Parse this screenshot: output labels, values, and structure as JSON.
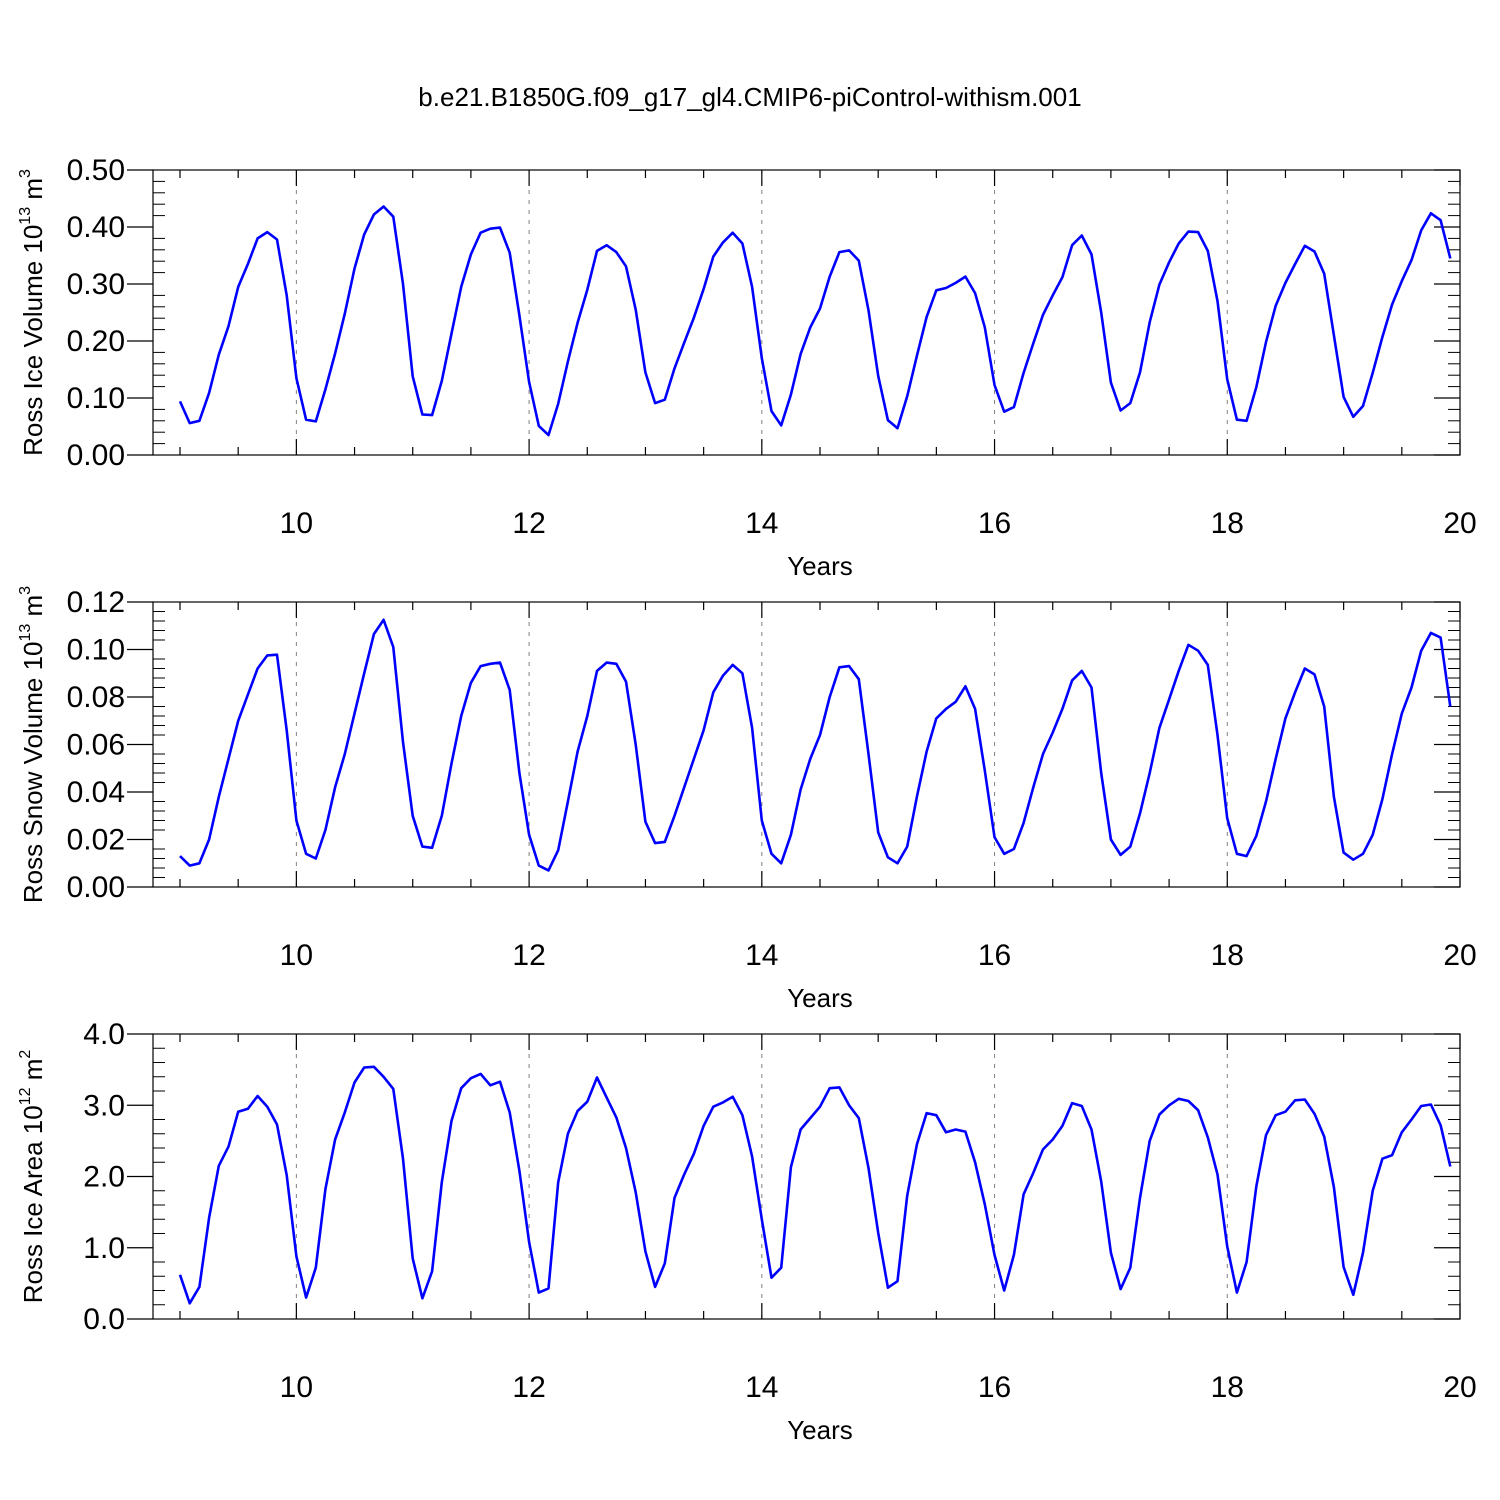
{
  "title": "b.e21.B1850G.f09_g17_gl4.CMIP6-piControl-withism.001",
  "colors": {
    "line": "#0000ff",
    "axes": "#000000",
    "grid": "#808080"
  },
  "chart_data": [
    {
      "type": "line",
      "xlabel": "Years",
      "ylabel": {
        "prefix": "Ross Ice Volume 10",
        "exp": "13",
        "unit": " m",
        "unit_exp": "3"
      },
      "xlim": [
        9,
        20
      ],
      "ylim": [
        0,
        0.5
      ],
      "yticks": [
        "0.00",
        "0.10",
        "0.20",
        "0.30",
        "0.40",
        "0.50"
      ],
      "xticks": [
        "10",
        "12",
        "14",
        "16",
        "18",
        "20"
      ],
      "grid": "dashed vertical at major x ticks",
      "x_start": 9.0,
      "x_step": 0.08333,
      "values": [
        0.094,
        0.056,
        0.06,
        0.109,
        0.176,
        0.226,
        0.295,
        0.335,
        0.38,
        0.391,
        0.378,
        0.28,
        0.135,
        0.062,
        0.059,
        0.115,
        0.178,
        0.248,
        0.327,
        0.387,
        0.422,
        0.436,
        0.418,
        0.3,
        0.138,
        0.071,
        0.07,
        0.13,
        0.213,
        0.295,
        0.352,
        0.39,
        0.397,
        0.399,
        0.355,
        0.245,
        0.128,
        0.051,
        0.035,
        0.09,
        0.164,
        0.232,
        0.29,
        0.358,
        0.368,
        0.356,
        0.331,
        0.255,
        0.145,
        0.091,
        0.097,
        0.152,
        0.197,
        0.241,
        0.291,
        0.348,
        0.373,
        0.39,
        0.371,
        0.295,
        0.17,
        0.077,
        0.052,
        0.106,
        0.177,
        0.224,
        0.257,
        0.313,
        0.356,
        0.359,
        0.341,
        0.254,
        0.139,
        0.061,
        0.047,
        0.103,
        0.174,
        0.242,
        0.289,
        0.293,
        0.302,
        0.313,
        0.284,
        0.224,
        0.123,
        0.076,
        0.084,
        0.144,
        0.196,
        0.246,
        0.28,
        0.312,
        0.368,
        0.385,
        0.352,
        0.25,
        0.127,
        0.078,
        0.091,
        0.145,
        0.233,
        0.299,
        0.338,
        0.371,
        0.392,
        0.391,
        0.358,
        0.27,
        0.133,
        0.062,
        0.06,
        0.119,
        0.198,
        0.262,
        0.302,
        0.335,
        0.367,
        0.357,
        0.318,
        0.21,
        0.102,
        0.067,
        0.086,
        0.144,
        0.207,
        0.264,
        0.305,
        0.342,
        0.394,
        0.424,
        0.412,
        0.345
      ]
    },
    {
      "type": "line",
      "xlabel": "Years",
      "ylabel": {
        "prefix": "Ross Snow Volume 10",
        "exp": "13",
        "unit": " m",
        "unit_exp": "3"
      },
      "xlim": [
        9,
        20
      ],
      "ylim": [
        0,
        0.12
      ],
      "yticks": [
        "0.00",
        "0.02",
        "0.04",
        "0.06",
        "0.08",
        "0.10",
        "0.12"
      ],
      "xticks": [
        "10",
        "12",
        "14",
        "16",
        "18",
        "20"
      ],
      "grid": "dashed vertical at major x ticks",
      "x_start": 9.0,
      "x_step": 0.08333,
      "values": [
        0.013,
        0.009,
        0.01,
        0.02,
        0.038,
        0.054,
        0.07,
        0.081,
        0.092,
        0.0975,
        0.0978,
        0.066,
        0.028,
        0.014,
        0.012,
        0.024,
        0.042,
        0.056,
        0.073,
        0.09,
        0.1065,
        0.1125,
        0.101,
        0.061,
        0.03,
        0.017,
        0.0165,
        0.03,
        0.052,
        0.072,
        0.086,
        0.093,
        0.094,
        0.0945,
        0.083,
        0.048,
        0.022,
        0.009,
        0.007,
        0.0155,
        0.036,
        0.057,
        0.072,
        0.091,
        0.0945,
        0.094,
        0.0865,
        0.06,
        0.0275,
        0.0185,
        0.019,
        0.03,
        0.042,
        0.054,
        0.066,
        0.082,
        0.089,
        0.0935,
        0.09,
        0.067,
        0.028,
        0.014,
        0.01,
        0.022,
        0.041,
        0.054,
        0.064,
        0.08,
        0.0925,
        0.093,
        0.0875,
        0.056,
        0.023,
        0.0125,
        0.01,
        0.017,
        0.038,
        0.057,
        0.071,
        0.075,
        0.078,
        0.0845,
        0.075,
        0.049,
        0.021,
        0.014,
        0.016,
        0.027,
        0.042,
        0.056,
        0.065,
        0.075,
        0.087,
        0.091,
        0.084,
        0.048,
        0.02,
        0.0135,
        0.017,
        0.031,
        0.048,
        0.067,
        0.079,
        0.091,
        0.102,
        0.0995,
        0.0935,
        0.064,
        0.029,
        0.014,
        0.013,
        0.0215,
        0.036,
        0.054,
        0.071,
        0.082,
        0.092,
        0.0895,
        0.076,
        0.038,
        0.0145,
        0.0115,
        0.014,
        0.022,
        0.037,
        0.056,
        0.073,
        0.084,
        0.0995,
        0.107,
        0.105,
        0.076
      ]
    },
    {
      "type": "line",
      "xlabel": "Years",
      "ylabel": {
        "prefix": "Ross Ice Area 10",
        "exp": "12",
        "unit": " m",
        "unit_exp": "2"
      },
      "xlim": [
        9,
        20
      ],
      "ylim": [
        0,
        4
      ],
      "yticks": [
        "0.0",
        "1.0",
        "2.0",
        "3.0",
        "4.0"
      ],
      "xticks": [
        "10",
        "12",
        "14",
        "16",
        "18",
        "20"
      ],
      "grid": "dashed vertical at major x ticks",
      "x_start": 9.0,
      "x_step": 0.08333,
      "values": [
        0.62,
        0.22,
        0.45,
        1.42,
        2.15,
        2.42,
        2.91,
        2.95,
        3.13,
        2.98,
        2.73,
        2.02,
        0.88,
        0.3,
        0.72,
        1.82,
        2.52,
        2.9,
        3.32,
        3.53,
        3.54,
        3.4,
        3.23,
        2.25,
        0.85,
        0.29,
        0.67,
        1.92,
        2.78,
        3.24,
        3.38,
        3.44,
        3.28,
        3.33,
        2.9,
        2.08,
        1.08,
        0.37,
        0.43,
        1.92,
        2.6,
        2.92,
        3.05,
        3.39,
        3.11,
        2.83,
        2.4,
        1.78,
        0.95,
        0.45,
        0.78,
        1.7,
        2.03,
        2.32,
        2.71,
        2.98,
        3.04,
        3.12,
        2.86,
        2.28,
        1.4,
        0.58,
        0.72,
        2.13,
        2.66,
        2.82,
        2.98,
        3.24,
        3.25,
        3.0,
        2.82,
        2.12,
        1.21,
        0.44,
        0.53,
        1.73,
        2.45,
        2.89,
        2.86,
        2.62,
        2.66,
        2.63,
        2.2,
        1.61,
        0.9,
        0.4,
        0.9,
        1.75,
        2.05,
        2.38,
        2.52,
        2.71,
        3.03,
        2.99,
        2.66,
        1.93,
        0.93,
        0.42,
        0.72,
        1.7,
        2.5,
        2.87,
        3.0,
        3.09,
        3.06,
        2.93,
        2.55,
        2.03,
        1.02,
        0.37,
        0.8,
        1.86,
        2.58,
        2.86,
        2.91,
        3.07,
        3.08,
        2.88,
        2.56,
        1.85,
        0.73,
        0.34,
        0.93,
        1.8,
        2.25,
        2.3,
        2.62,
        2.8,
        2.99,
        3.01,
        2.72,
        2.14
      ]
    }
  ]
}
